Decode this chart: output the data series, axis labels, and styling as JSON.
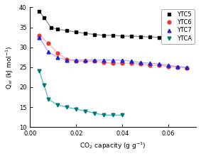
{
  "title": "",
  "xlabel": "CO$_2$ capacity (g g$^{-1}$)",
  "ylabel": "Q$_{st}$ (kJ mol$^{-1}$)",
  "xlim": [
    0.0,
    0.072
  ],
  "ylim": [
    10,
    40
  ],
  "yticks": [
    10,
    15,
    20,
    25,
    30,
    35,
    40
  ],
  "xticks": [
    0.0,
    0.02,
    0.04,
    0.06
  ],
  "series": {
    "YTC5": {
      "color": "#000000",
      "marker": "s",
      "markersize": 3.5,
      "linecolor": "#888888",
      "x": [
        0.004,
        0.006,
        0.009,
        0.012,
        0.016,
        0.02,
        0.024,
        0.028,
        0.032,
        0.036,
        0.04,
        0.044,
        0.048,
        0.052,
        0.056,
        0.06,
        0.064,
        0.068
      ],
      "y": [
        39.0,
        37.5,
        35.0,
        34.5,
        34.2,
        33.8,
        33.5,
        33.2,
        33.0,
        33.0,
        32.8,
        32.8,
        32.7,
        32.6,
        32.5,
        32.4,
        33.0,
        33.0
      ]
    },
    "YTC6": {
      "color": "#ee3333",
      "marker": "o",
      "markersize": 3.5,
      "linecolor": "#ffaaaa",
      "x": [
        0.004,
        0.008,
        0.012,
        0.016,
        0.02,
        0.024,
        0.028,
        0.032,
        0.036,
        0.04,
        0.044,
        0.048,
        0.052,
        0.056,
        0.06,
        0.064,
        0.068
      ],
      "y": [
        33.0,
        31.0,
        28.5,
        27.0,
        26.5,
        26.5,
        26.5,
        26.2,
        26.0,
        26.0,
        26.0,
        25.8,
        25.5,
        25.5,
        25.2,
        25.0,
        24.8
      ]
    },
    "YTC7": {
      "color": "#2222cc",
      "marker": "^",
      "markersize": 3.5,
      "linecolor": "#aaaaee",
      "x": [
        0.004,
        0.008,
        0.012,
        0.016,
        0.02,
        0.024,
        0.028,
        0.032,
        0.036,
        0.04,
        0.044,
        0.048,
        0.052,
        0.056,
        0.06,
        0.064,
        0.068
      ],
      "y": [
        32.5,
        28.8,
        27.5,
        26.8,
        26.8,
        26.8,
        26.8,
        26.8,
        26.8,
        26.8,
        26.5,
        26.2,
        26.0,
        25.8,
        25.5,
        25.2,
        25.0
      ]
    },
    "YTCA": {
      "color": "#007777",
      "marker": "v",
      "markersize": 3.5,
      "linecolor": "#55bbbb",
      "x": [
        0.004,
        0.006,
        0.008,
        0.012,
        0.016,
        0.02,
        0.024,
        0.028,
        0.032,
        0.036,
        0.04
      ],
      "y": [
        24.0,
        20.5,
        17.0,
        15.5,
        15.0,
        14.5,
        14.0,
        13.5,
        13.0,
        13.0,
        13.0
      ]
    }
  },
  "legend_order": [
    "YTC5",
    "YTC6",
    "YTC7",
    "YTCA"
  ],
  "background_color": "#ffffff"
}
